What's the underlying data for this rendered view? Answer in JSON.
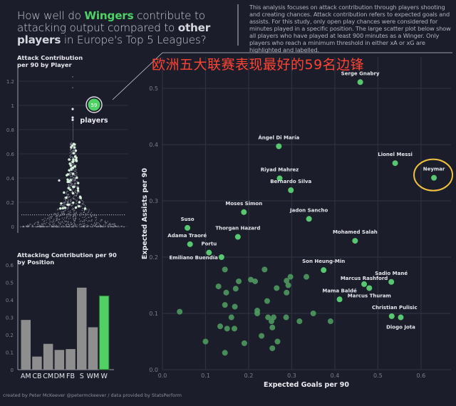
{
  "title": {
    "part1": "How well do ",
    "wingers": "Wingers",
    "part2": " contribute to attacking output compared to ",
    "other": "other players",
    "part3": " in Europe's Top 5 Leagues?"
  },
  "description": "This analysis focuses on attack contribution through players shooting and creating chances. Attack contribution refers to expected goals and assists. For this study, only open play chances were considered for minutes played in a specific position. The large scatter plot below show all players who have played at least 900 minutes as a Winger. Only players who reach a minimum threshold in either xA or xG are highlighted and labelled.",
  "overlay_caption": "欧洲五大联赛表现最好的59名边锋",
  "footer": "created by Peter McKeever @petermckeever / data provided by StatsPerform",
  "colors": {
    "background": "#1b1d2a",
    "accent": "#4fd166",
    "highlight_ring": "#f0c040",
    "bar_gray": "#8e8e8e",
    "caption_red": "#ff4433"
  },
  "chart_data": [
    {
      "type": "scatter",
      "subtype": "beeswarm",
      "title": "Attack Contribution per 90 by Player",
      "ylabel": "",
      "ylim": [
        0,
        1.25
      ],
      "yticks": [
        "0",
        "0.2",
        "0.4",
        "0.6",
        "0.8",
        "1",
        "1.2"
      ],
      "annotation": {
        "count": "59",
        "label": "players"
      }
    },
    {
      "type": "bar",
      "title": "Attacking Contribution per 90 by Position",
      "categories": [
        "AM",
        "CB",
        "CM",
        "DM",
        "FB",
        "S",
        "WM",
        "W"
      ],
      "values": [
        0.285,
        0.075,
        0.148,
        0.113,
        0.118,
        0.47,
        0.243,
        0.423
      ],
      "highlight": "W",
      "ylim": [
        0,
        0.6
      ],
      "yticks": [
        "0",
        "0.1",
        "0.2",
        "0.3",
        "0.4",
        "0.5",
        "0.6"
      ]
    },
    {
      "type": "scatter",
      "title": "",
      "xlabel": "Expected Goals per 90",
      "ylabel": "Expected Assists per 90",
      "xlim": [
        0,
        0.68
      ],
      "ylim": [
        0,
        0.53
      ],
      "xticks": [
        "0.0",
        "0.1",
        "0.2",
        "0.3",
        "0.4",
        "0.5",
        "0.6"
      ],
      "yticks": [
        "0.0",
        "0.1",
        "0.2",
        "0.3",
        "0.4",
        "0.5"
      ],
      "labelled": [
        {
          "name": "Serge Gnabry",
          "x": 0.459,
          "y": 0.511
        },
        {
          "name": "Ángel Di María",
          "x": 0.27,
          "y": 0.397
        },
        {
          "name": "Lionel Messi",
          "x": 0.54,
          "y": 0.367
        },
        {
          "name": "Neymar",
          "x": 0.63,
          "y": 0.341,
          "ringed": true
        },
        {
          "name": "Riyad Mahrez",
          "x": 0.272,
          "y": 0.34
        },
        {
          "name": "Bernardo Silva",
          "x": 0.298,
          "y": 0.319
        },
        {
          "name": "Moses Simon",
          "x": 0.189,
          "y": 0.28
        },
        {
          "name": "Jadon Sancho",
          "x": 0.34,
          "y": 0.268
        },
        {
          "name": "Suso",
          "x": 0.058,
          "y": 0.252
        },
        {
          "name": "Thorgan Hazard",
          "x": 0.175,
          "y": 0.236
        },
        {
          "name": "Mohamed Salah",
          "x": 0.447,
          "y": 0.229
        },
        {
          "name": "Adama Traoré",
          "x": 0.064,
          "y": 0.223
        },
        {
          "name": "Portu",
          "x": 0.108,
          "y": 0.208
        },
        {
          "name": "Emiliano Buendía",
          "x": 0.137,
          "y": 0.2
        },
        {
          "name": "Son Heung-Min",
          "x": 0.374,
          "y": 0.177
        },
        {
          "name": "Sadio Mané",
          "x": 0.531,
          "y": 0.156
        },
        {
          "name": "Marcus Rashford",
          "x": 0.468,
          "y": 0.152
        },
        {
          "name": "Marcus Thuram",
          "x": 0.48,
          "y": 0.145
        },
        {
          "name": "Mama Baldé",
          "x": 0.411,
          "y": 0.125
        },
        {
          "name": "Christian Pulisic",
          "x": 0.532,
          "y": 0.095
        },
        {
          "name": "Diogo Jota",
          "x": 0.553,
          "y": 0.093
        }
      ],
      "unlabelled": [
        {
          "x": 0.04,
          "y": 0.103
        },
        {
          "x": 0.1,
          "y": 0.05
        },
        {
          "x": 0.13,
          "y": 0.148
        },
        {
          "x": 0.134,
          "y": 0.077
        },
        {
          "x": 0.145,
          "y": 0.178
        },
        {
          "x": 0.145,
          "y": 0.115
        },
        {
          "x": 0.145,
          "y": 0.03
        },
        {
          "x": 0.148,
          "y": 0.137
        },
        {
          "x": 0.15,
          "y": 0.073
        },
        {
          "x": 0.16,
          "y": 0.093
        },
        {
          "x": 0.167,
          "y": 0.073
        },
        {
          "x": 0.168,
          "y": 0.112
        },
        {
          "x": 0.17,
          "y": 0.144
        },
        {
          "x": 0.177,
          "y": 0.157
        },
        {
          "x": 0.19,
          "y": 0.047
        },
        {
          "x": 0.205,
          "y": 0.16
        },
        {
          "x": 0.22,
          "y": 0.105
        },
        {
          "x": 0.22,
          "y": 0.1
        },
        {
          "x": 0.23,
          "y": 0.06
        },
        {
          "x": 0.237,
          "y": 0.178
        },
        {
          "x": 0.243,
          "y": 0.122
        },
        {
          "x": 0.245,
          "y": 0.093
        },
        {
          "x": 0.253,
          "y": 0.086
        },
        {
          "x": 0.255,
          "y": 0.075
        },
        {
          "x": 0.255,
          "y": 0.038
        },
        {
          "x": 0.258,
          "y": 0.093
        },
        {
          "x": 0.265,
          "y": 0.145
        },
        {
          "x": 0.267,
          "y": 0.05
        },
        {
          "x": 0.287,
          "y": 0.093
        },
        {
          "x": 0.288,
          "y": 0.158
        },
        {
          "x": 0.288,
          "y": 0.137
        },
        {
          "x": 0.292,
          "y": 0.15
        },
        {
          "x": 0.318,
          "y": 0.086
        },
        {
          "x": 0.334,
          "y": 0.165
        },
        {
          "x": 0.35,
          "y": 0.1
        },
        {
          "x": 0.39,
          "y": 0.086
        },
        {
          "x": 0.297,
          "y": 0.165
        },
        {
          "x": 0.215,
          "y": 0.157
        }
      ]
    }
  ]
}
